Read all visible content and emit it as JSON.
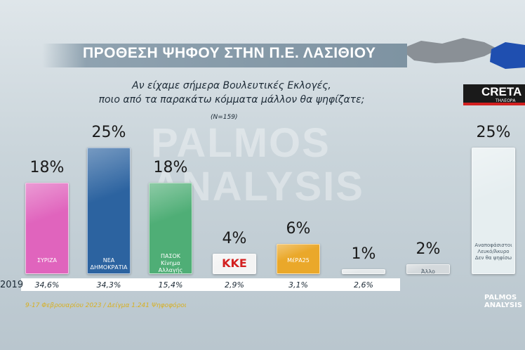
{
  "chart_data": {
    "type": "bar",
    "title": "ΠΡΟΘΕΣΗ ΨΗΦΟΥ ΣΤΗΝ Π.Ε. ΛΑΣΙΘΙΟΥ",
    "subtitle": [
      "Αν είχαμε σήμερα Βουλευτικές Εκλογές,",
      "ποιο από τα παρακάτω κόμματα μάλλον θα ψηφίζατε;"
    ],
    "sample": "(N=159)",
    "watermark": [
      "PALMOS",
      "ANALYSIS"
    ],
    "channel": [
      "CRETA",
      "ΤΗΛΕΟΡΑ"
    ],
    "categories": [
      "ΣΥΡΙΖΑ",
      "ΝΕΑ ΔΗΜΟΚΡΑΤΙΑ",
      "ΠΑΣΟΚ\nΚίνημα Αλλαγής",
      "ΚΚΕ",
      "ΜέΡΑ25",
      null,
      "Άλλο",
      "Αναποφάσιστοι\nΛευκό/Άκυρο\nΔεν θα ψηφίσω"
    ],
    "values": [
      18,
      25,
      18,
      4,
      6,
      1,
      2,
      25
    ],
    "value_labels": [
      "18%",
      "25%",
      "18%",
      "4%",
      "6%",
      "1%",
      "2%",
      "25%"
    ],
    "colors": [
      "#e064bd",
      "#2c63a0",
      "#4fae76",
      "#f4f4f4",
      "#eaa82a",
      "#e4e8ea",
      "#d4d9dc",
      "#e6eef0"
    ],
    "results_label": "2019",
    "results_2019": [
      "34,6%",
      "34,3%",
      "15,4%",
      "2,9%",
      "3,1%",
      "2,6%",
      null,
      null
    ],
    "footnote": "9-17 Φεβρουαρίου 2023 / Δείγμα 1.241 Ψηφοφόροι",
    "brand": "PALMOS\nANALYSIS"
  }
}
